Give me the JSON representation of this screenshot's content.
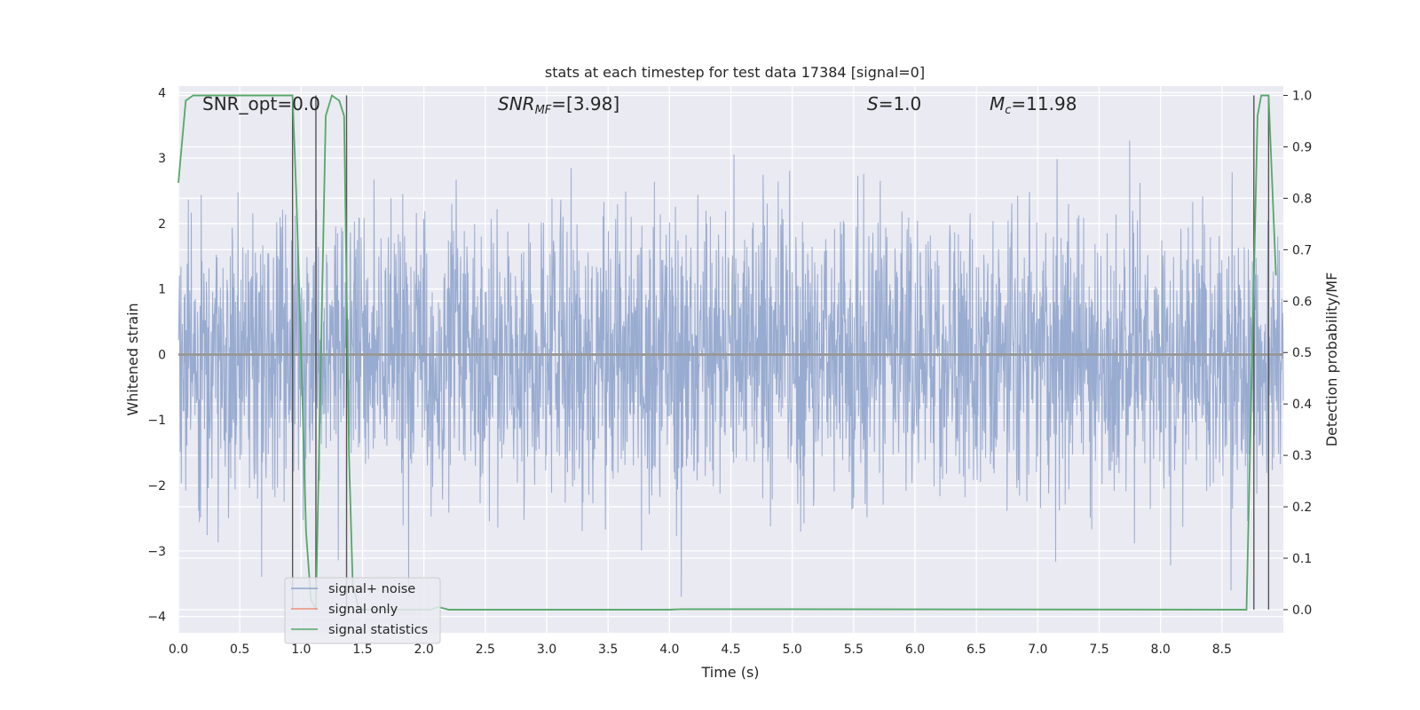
{
  "chart_data": {
    "type": "line",
    "title": "stats at each timestep for test data 17384 [signal=0]",
    "xlabel": "Time (s)",
    "ylabel": "Whitened strain",
    "y2label": "Detection probability/MF",
    "xlim": [
      0,
      9.0
    ],
    "ylim": [
      -4.25,
      4.1
    ],
    "y2lim": [
      -0.045,
      1.0182
    ],
    "x_ticks": [
      0.0,
      0.5,
      1.0,
      1.5,
      2.0,
      2.5,
      3.0,
      3.5,
      4.0,
      4.5,
      5.0,
      5.5,
      6.0,
      6.5,
      7.0,
      7.5,
      8.0,
      8.5
    ],
    "x_tick_labels": [
      "0.0",
      "0.5",
      "1.0",
      "1.5",
      "2.0",
      "2.5",
      "3.0",
      "3.5",
      "4.0",
      "4.5",
      "5.0",
      "5.5",
      "6.0",
      "6.5",
      "7.0",
      "7.5",
      "8.0",
      "8.5"
    ],
    "y_ticks": [
      4,
      3,
      2,
      1,
      0,
      -1,
      -2,
      -3,
      -4
    ],
    "y_tick_labels": [
      "4",
      "3",
      "2",
      "1",
      "0",
      "−1",
      "−2",
      "−3",
      "−4"
    ],
    "y2_ticks": [
      1.0,
      0.9,
      0.8,
      0.7,
      0.6,
      0.5,
      0.4,
      0.3,
      0.2,
      0.1,
      0.0
    ],
    "y2_tick_labels": [
      "1.0",
      "0.9",
      "0.8",
      "0.7",
      "0.6",
      "0.5",
      "0.4",
      "0.3",
      "0.2",
      "0.1",
      "0.0"
    ],
    "grid": true,
    "legend": "lower-left",
    "annotations": {
      "snr_opt": "SNR_opt=0.0",
      "snr_mf_sym": "SNR",
      "snr_mf_sub": "MF",
      "snr_mf_val": "=[3.98]",
      "s_sym": "S",
      "s_val": "=1.0",
      "mc_sym": "M",
      "mc_sub": "c",
      "mc_val": "=11.98"
    },
    "vertical_lines": [
      0.93,
      1.12,
      1.37,
      8.76,
      8.88
    ],
    "series": [
      {
        "name": "signal+ noise",
        "color": "#8fa4cc",
        "axis": "left",
        "description_values": "whitened strain noise, amplitude mostly within -2.5..3, peaks near 4",
        "seed": 17384,
        "n_points": 3000
      },
      {
        "name": "signal only",
        "color": "#e8907a",
        "axis": "left",
        "values": "zero"
      },
      {
        "name": "signal statistics",
        "color": "#55a868",
        "axis": "right",
        "points": [
          [
            0.0,
            0.83
          ],
          [
            0.06,
            0.99
          ],
          [
            0.12,
            1.0
          ],
          [
            0.5,
            1.0
          ],
          [
            0.93,
            1.0
          ],
          [
            0.96,
            0.81
          ],
          [
            1.0,
            0.5
          ],
          [
            1.04,
            0.15
          ],
          [
            1.08,
            0.02
          ],
          [
            1.12,
            0.0
          ],
          [
            1.17,
            0.6
          ],
          [
            1.2,
            0.96
          ],
          [
            1.25,
            1.0
          ],
          [
            1.31,
            0.99
          ],
          [
            1.35,
            0.96
          ],
          [
            1.39,
            0.3
          ],
          [
            1.42,
            0.05
          ],
          [
            1.47,
            0.0
          ],
          [
            1.8,
            0.0
          ],
          [
            2.05,
            0.0
          ],
          [
            2.12,
            0.005
          ],
          [
            2.2,
            0.0
          ],
          [
            4.0,
            0.0
          ],
          [
            4.1,
            0.001
          ],
          [
            8.7,
            0.0
          ],
          [
            8.79,
            0.96
          ],
          [
            8.82,
            1.0
          ],
          [
            8.88,
            1.0
          ],
          [
            8.94,
            0.65
          ]
        ]
      }
    ]
  }
}
